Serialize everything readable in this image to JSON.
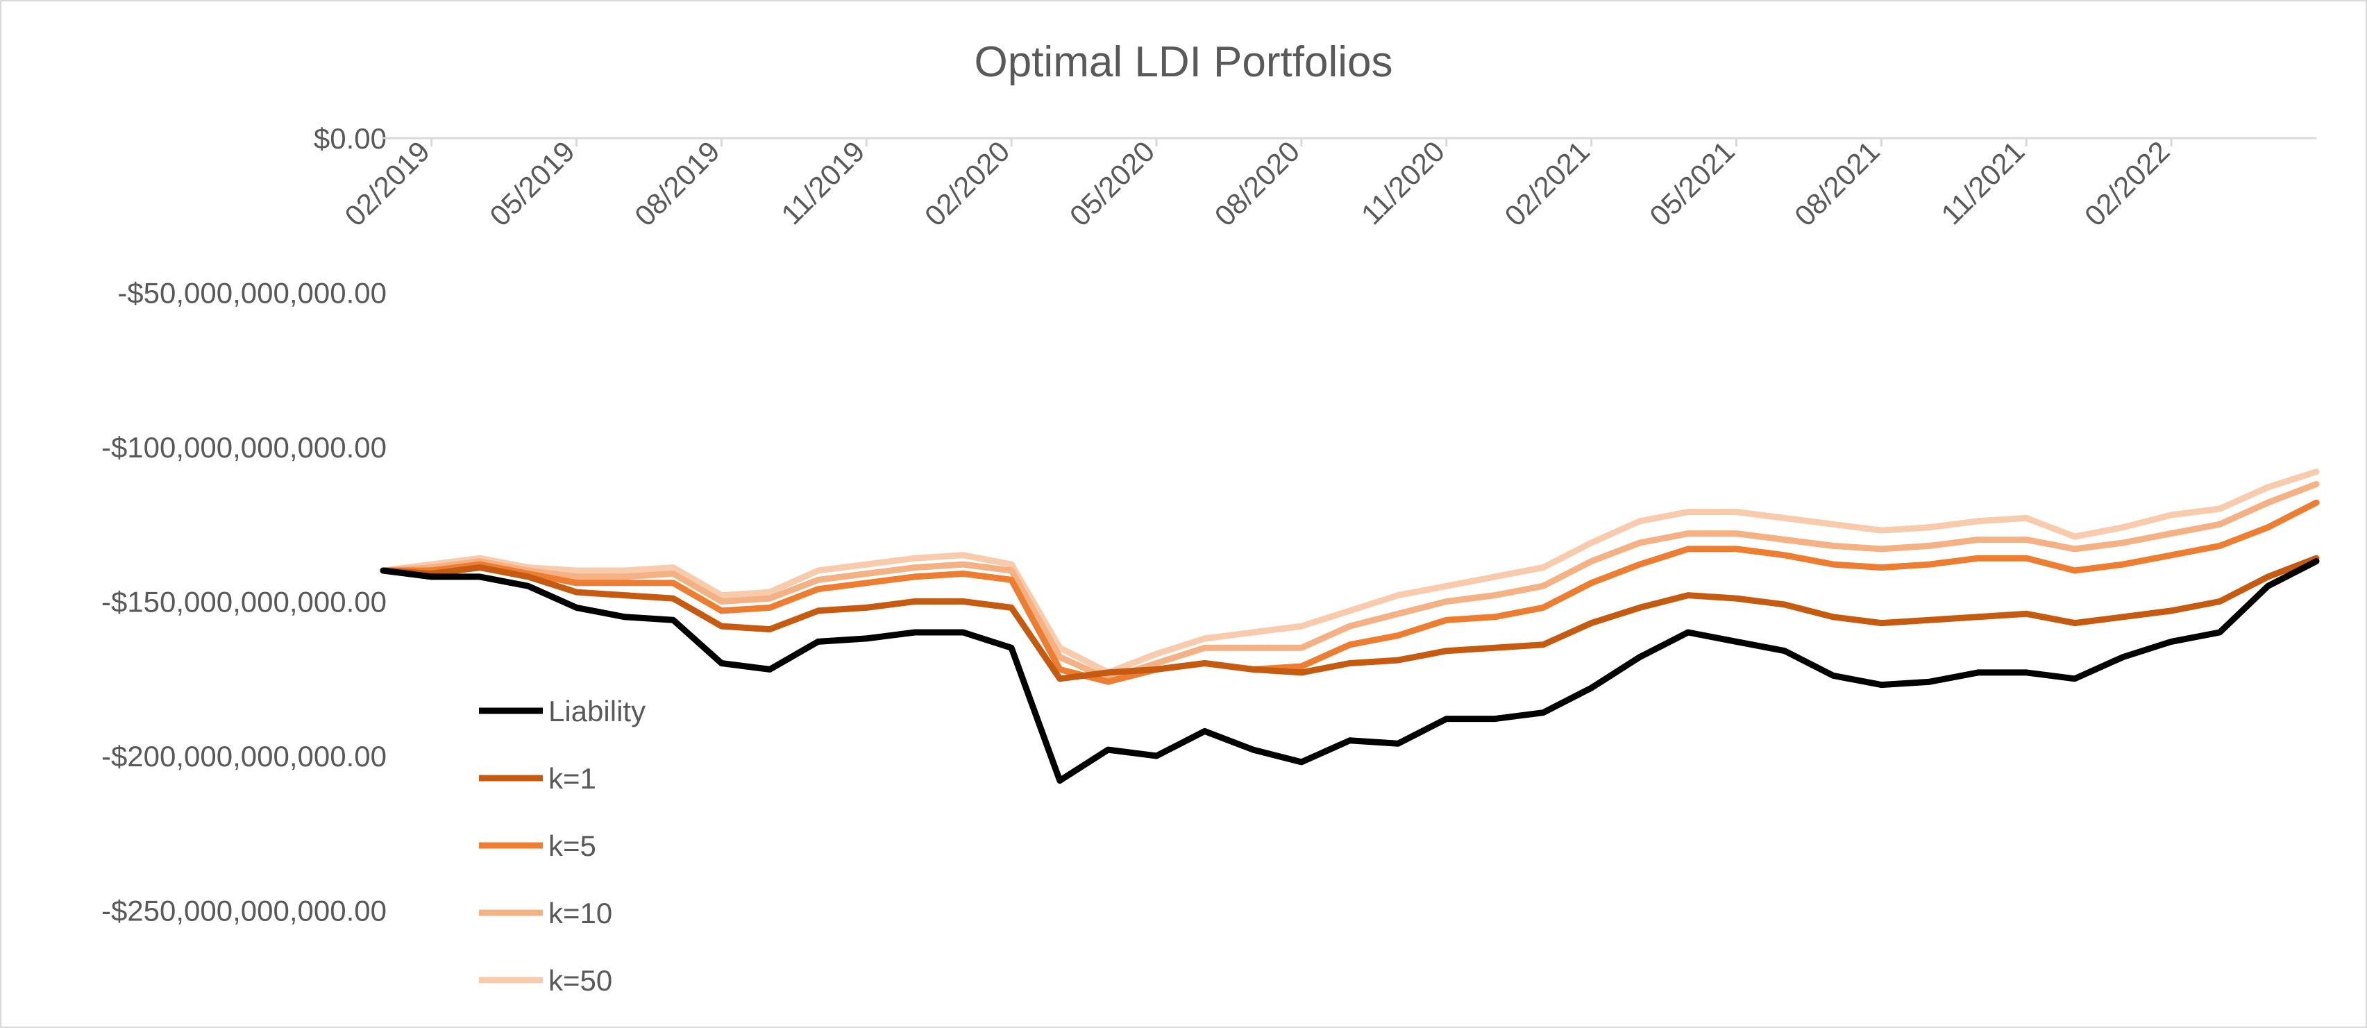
{
  "chart_data": {
    "type": "line",
    "title": "Optimal LDI Portfolios",
    "xlabel": "",
    "ylabel": "",
    "ylim": [
      -270000000000,
      0
    ],
    "yticks": [
      0,
      -50000000000,
      -100000000000,
      -150000000000,
      -200000000000,
      -250000000000
    ],
    "ytick_labels": [
      "$0.00",
      "-$50,000,000,000.00",
      "-$100,000,000,000.00",
      "-$150,000,000,000.00",
      "-$200,000,000,000.00",
      "-$250,000,000,000.00"
    ],
    "x_start": "01/2019",
    "x_end": "05/2022",
    "xticks": [
      "02/2019",
      "05/2019",
      "08/2019",
      "11/2019",
      "02/2020",
      "05/2020",
      "08/2020",
      "11/2020",
      "02/2021",
      "05/2021",
      "08/2021",
      "11/2021",
      "02/2022"
    ],
    "grid": false,
    "legend_position": "bottom-left",
    "x": [
      "01/2019",
      "02/2019",
      "03/2019",
      "04/2019",
      "05/2019",
      "06/2019",
      "07/2019",
      "08/2019",
      "09/2019",
      "10/2019",
      "11/2019",
      "12/2019",
      "01/2020",
      "02/2020",
      "03/2020",
      "04/2020",
      "05/2020",
      "06/2020",
      "07/2020",
      "08/2020",
      "09/2020",
      "10/2020",
      "11/2020",
      "12/2020",
      "01/2021",
      "02/2021",
      "03/2021",
      "04/2021",
      "05/2021",
      "06/2021",
      "07/2021",
      "08/2021",
      "09/2021",
      "10/2021",
      "11/2021",
      "12/2021",
      "01/2022",
      "02/2022",
      "03/2022",
      "04/2022",
      "05/2022"
    ],
    "series": [
      {
        "name": "Liability",
        "color": "#000000",
        "values": [
          -140,
          -142,
          -142,
          -145,
          -152,
          -155,
          -156,
          -170,
          -172,
          -163,
          -162,
          -160,
          -160,
          -165,
          -208,
          -198,
          -200,
          -192,
          -198,
          -202,
          -195,
          -196,
          -188,
          -188,
          -186,
          -178,
          -168,
          -160,
          -163,
          -166,
          -174,
          -177,
          -176,
          -173,
          -173,
          -175,
          -168,
          -163,
          -160,
          -145,
          -137
        ]
      },
      {
        "name": "k=1",
        "color": "#c55a11",
        "values": [
          -140,
          -141,
          -139,
          -142,
          -147,
          -148,
          -149,
          -158,
          -159,
          -153,
          -152,
          -150,
          -150,
          -152,
          -175,
          -173,
          -172,
          -170,
          -172,
          -173,
          -170,
          -169,
          -166,
          -165,
          -164,
          -157,
          -152,
          -148,
          -149,
          -151,
          -155,
          -157,
          -156,
          -155,
          -154,
          -157,
          -155,
          -153,
          -150,
          -142,
          -136
        ]
      },
      {
        "name": "k=5",
        "color": "#ed7d31",
        "values": [
          -140,
          -140,
          -138,
          -141,
          -144,
          -144,
          -144,
          -153,
          -152,
          -146,
          -144,
          -142,
          -141,
          -143,
          -172,
          -176,
          -172,
          -170,
          -172,
          -171,
          -164,
          -161,
          -156,
          -155,
          -152,
          -144,
          -138,
          -133,
          -133,
          -135,
          -138,
          -139,
          -138,
          -136,
          -136,
          -140,
          -138,
          -135,
          -132,
          -126,
          -118
        ]
      },
      {
        "name": "k=10",
        "color": "#f4b183",
        "values": [
          -140,
          -139,
          -137,
          -140,
          -142,
          -142,
          -141,
          -150,
          -149,
          -143,
          -141,
          -139,
          -138,
          -140,
          -168,
          -175,
          -170,
          -165,
          -165,
          -165,
          -158,
          -154,
          -150,
          -148,
          -145,
          -137,
          -131,
          -128,
          -128,
          -130,
          -132,
          -133,
          -132,
          -130,
          -130,
          -133,
          -131,
          -128,
          -125,
          -118,
          -112
        ]
      },
      {
        "name": "k=50",
        "color": "#f8cbad",
        "values": [
          -140,
          -138,
          -136,
          -139,
          -140,
          -140,
          -139,
          -148,
          -147,
          -140,
          -138,
          -136,
          -135,
          -138,
          -165,
          -173,
          -167,
          -162,
          -160,
          -158,
          -153,
          -148,
          -145,
          -142,
          -139,
          -131,
          -124,
          -121,
          -121,
          -123,
          -125,
          -127,
          -126,
          -124,
          -123,
          -129,
          -126,
          -122,
          -120,
          -113,
          -108
        ]
      }
    ]
  }
}
